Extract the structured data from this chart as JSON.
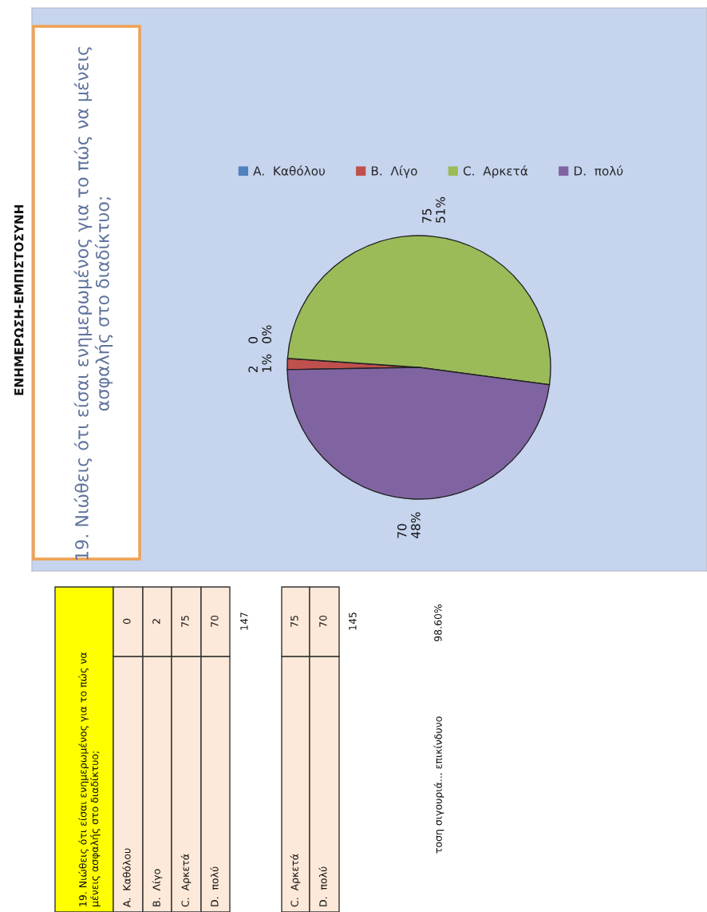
{
  "chart_data": {
    "type": "pie",
    "title": "19. Νιώθεις ότι είσαι ενημερωμένος για το πώς να μένεις\nασφαλής στο διαδίκτυο;",
    "categories": [
      "A.  Καθόλου",
      "B.  Λίγο",
      "C.  Αρκετά",
      "D.  πολύ"
    ],
    "values": [
      0,
      2,
      75,
      70
    ],
    "colors": [
      "#4f81bd",
      "#c0504d",
      "#9bbb59",
      "#8064a2"
    ],
    "value_labels": [
      "0\n0%",
      "2\n1%",
      "75\n51%",
      "70\n48%"
    ],
    "legend": "top",
    "annotations": [
      "ΕΝΗΜΕΡΩΣΗ-ΕΜΠΙΣΤΟΣΥΝΗ",
      "19. Νιώθεις ότι είσαι ενημερωμένος για το πώς να\nμένεις ασφαλής στο διαδίκτυο;",
      "A.  Καθόλου",
      "0",
      "B.  Λίγο",
      "2",
      "C.  Αρκετά",
      "75",
      "D.  πολύ",
      "70",
      "147",
      "C.  Αρκετά",
      "75",
      "D.  πολύ",
      "70",
      "145",
      "τοση σιγουριά... επικίνδυνο",
      "98.60%"
    ]
  }
}
